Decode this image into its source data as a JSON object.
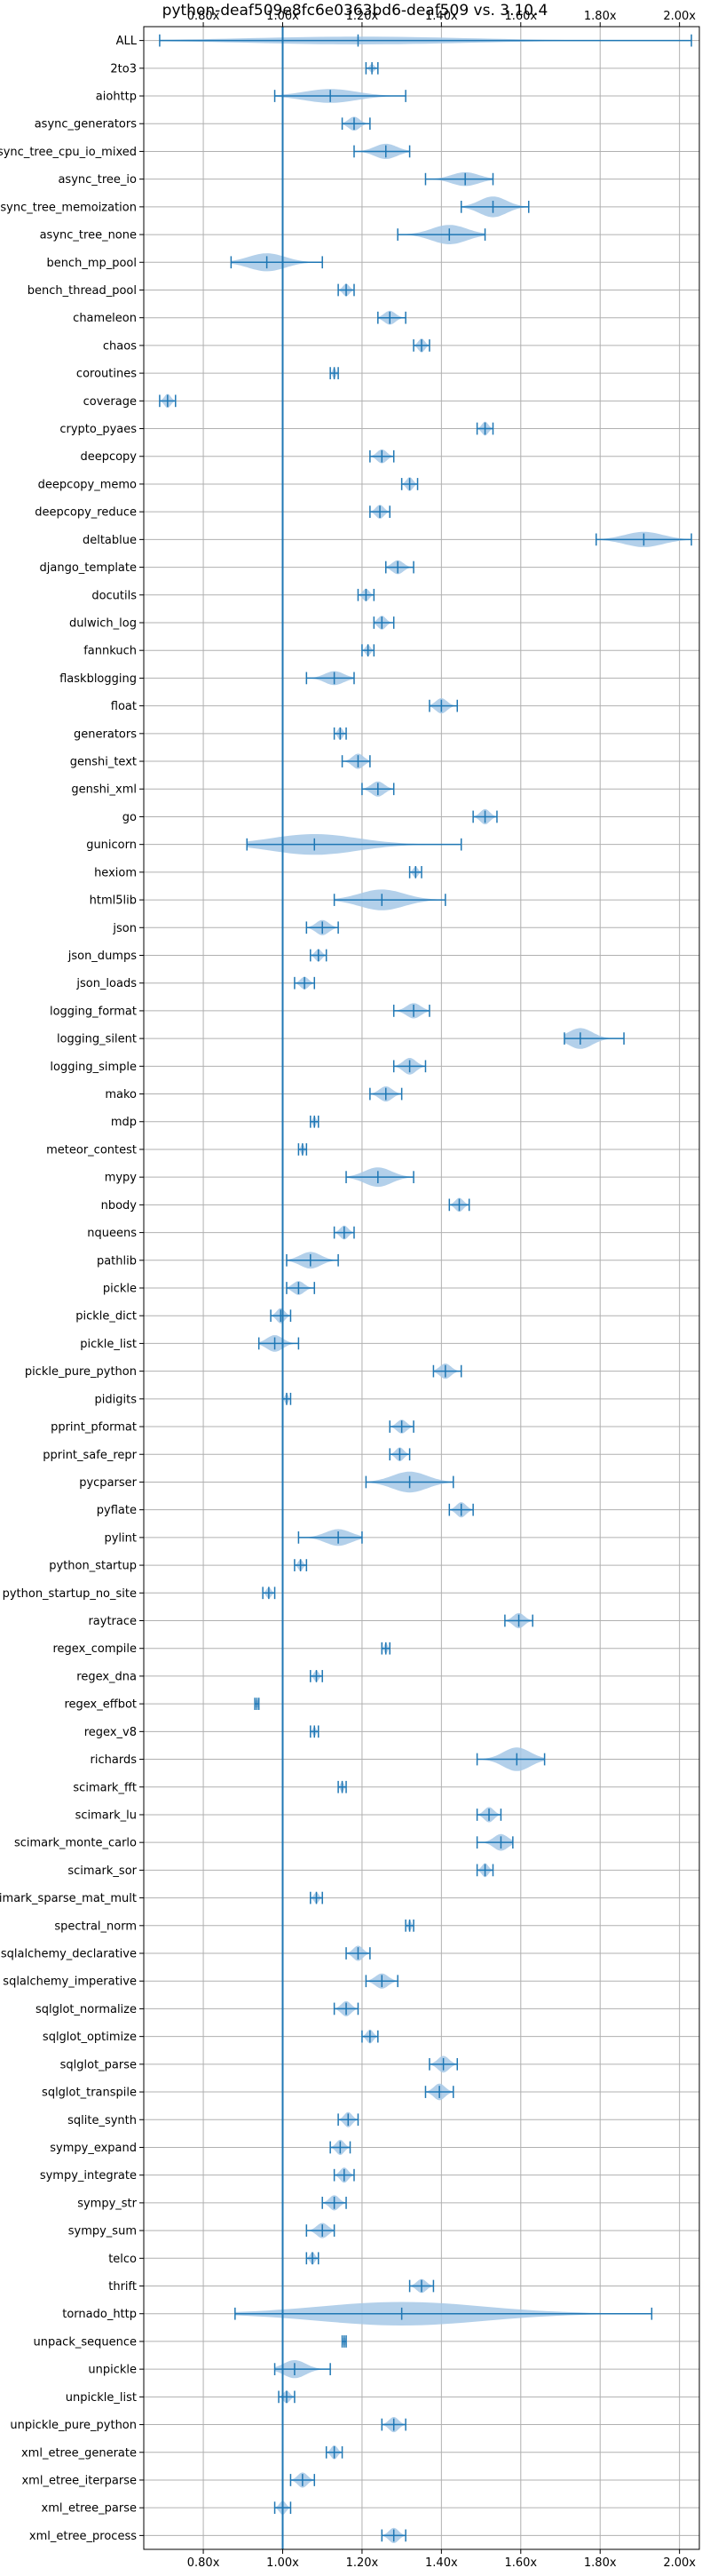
{
  "chart_data": {
    "type": "violin",
    "orientation": "horizontal",
    "title": "python-deaf509e8fc6e0363bd6-deaf509 vs. 3.10.4",
    "xlim": [
      0.65,
      2.05
    ],
    "xticks": [
      0.8,
      1.0,
      1.2,
      1.4,
      1.6,
      1.8,
      2.0
    ],
    "xtick_labels": [
      "0.80x",
      "1.00x",
      "1.20x",
      "1.40x",
      "1.60x",
      "1.80x",
      "2.00x"
    ],
    "xticks_top": true,
    "grid": true,
    "reference_line": 1.0,
    "colors": {
      "violin_fill": "#a6c8e6",
      "line": "#1f77b4",
      "grid": "#b0b0b0",
      "reference": "#1f77b4"
    },
    "categories": [
      "ALL",
      "2to3",
      "aiohttp",
      "async_generators",
      "async_tree_cpu_io_mixed",
      "async_tree_io",
      "async_tree_memoization",
      "async_tree_none",
      "bench_mp_pool",
      "bench_thread_pool",
      "chameleon",
      "chaos",
      "coroutines",
      "coverage",
      "crypto_pyaes",
      "deepcopy",
      "deepcopy_memo",
      "deepcopy_reduce",
      "deltablue",
      "django_template",
      "docutils",
      "dulwich_log",
      "fannkuch",
      "flaskblogging",
      "float",
      "generators",
      "genshi_text",
      "genshi_xml",
      "go",
      "gunicorn",
      "hexiom",
      "html5lib",
      "json",
      "json_dumps",
      "json_loads",
      "logging_format",
      "logging_silent",
      "logging_simple",
      "mako",
      "mdp",
      "meteor_contest",
      "mypy",
      "nbody",
      "nqueens",
      "pathlib",
      "pickle",
      "pickle_dict",
      "pickle_list",
      "pickle_pure_python",
      "pidigits",
      "pprint_pformat",
      "pprint_safe_repr",
      "pycparser",
      "pyflate",
      "pylint",
      "python_startup",
      "python_startup_no_site",
      "raytrace",
      "regex_compile",
      "regex_dna",
      "regex_effbot",
      "regex_v8",
      "richards",
      "scimark_fft",
      "scimark_lu",
      "scimark_monte_carlo",
      "scimark_sor",
      "scimark_sparse_mat_mult",
      "spectral_norm",
      "sqlalchemy_declarative",
      "sqlalchemy_imperative",
      "sqlglot_normalize",
      "sqlglot_optimize",
      "sqlglot_parse",
      "sqlglot_transpile",
      "sqlite_synth",
      "sympy_expand",
      "sympy_integrate",
      "sympy_str",
      "sympy_sum",
      "telco",
      "thrift",
      "tornado_http",
      "unpack_sequence",
      "unpickle",
      "unpickle_list",
      "unpickle_pure_python",
      "xml_etree_generate",
      "xml_etree_iterparse",
      "xml_etree_parse",
      "xml_etree_process"
    ],
    "series": [
      {
        "min": 0.69,
        "max": 2.03,
        "median": 1.19,
        "width": 0.28
      },
      {
        "min": 1.21,
        "max": 1.24,
        "median": 1.225,
        "width": 0.3
      },
      {
        "min": 0.98,
        "max": 1.31,
        "median": 1.12,
        "width": 0.5
      },
      {
        "min": 1.15,
        "max": 1.22,
        "median": 1.18,
        "width": 0.5
      },
      {
        "min": 1.18,
        "max": 1.32,
        "median": 1.26,
        "width": 0.55
      },
      {
        "min": 1.36,
        "max": 1.53,
        "median": 1.46,
        "width": 0.5
      },
      {
        "min": 1.45,
        "max": 1.62,
        "median": 1.53,
        "width": 0.75
      },
      {
        "min": 1.29,
        "max": 1.51,
        "median": 1.42,
        "width": 0.7
      },
      {
        "min": 0.87,
        "max": 1.1,
        "median": 0.96,
        "width": 0.65
      },
      {
        "min": 1.14,
        "max": 1.18,
        "median": 1.16,
        "width": 0.45
      },
      {
        "min": 1.24,
        "max": 1.31,
        "median": 1.27,
        "width": 0.5
      },
      {
        "min": 1.33,
        "max": 1.37,
        "median": 1.35,
        "width": 0.5
      },
      {
        "min": 1.12,
        "max": 1.14,
        "median": 1.13,
        "width": 0.4
      },
      {
        "min": 0.69,
        "max": 0.73,
        "median": 0.71,
        "width": 0.5
      },
      {
        "min": 1.49,
        "max": 1.53,
        "median": 1.51,
        "width": 0.5
      },
      {
        "min": 1.22,
        "max": 1.28,
        "median": 1.25,
        "width": 0.5
      },
      {
        "min": 1.3,
        "max": 1.34,
        "median": 1.32,
        "width": 0.5
      },
      {
        "min": 1.22,
        "max": 1.27,
        "median": 1.245,
        "width": 0.5
      },
      {
        "min": 1.79,
        "max": 2.03,
        "median": 1.91,
        "width": 0.55
      },
      {
        "min": 1.26,
        "max": 1.33,
        "median": 1.29,
        "width": 0.5
      },
      {
        "min": 1.19,
        "max": 1.23,
        "median": 1.21,
        "width": 0.45
      },
      {
        "min": 1.23,
        "max": 1.28,
        "median": 1.25,
        "width": 0.5
      },
      {
        "min": 1.2,
        "max": 1.23,
        "median": 1.215,
        "width": 0.4
      },
      {
        "min": 1.06,
        "max": 1.18,
        "median": 1.13,
        "width": 0.5
      },
      {
        "min": 1.37,
        "max": 1.44,
        "median": 1.4,
        "width": 0.55
      },
      {
        "min": 1.13,
        "max": 1.16,
        "median": 1.145,
        "width": 0.45
      },
      {
        "min": 1.15,
        "max": 1.22,
        "median": 1.19,
        "width": 0.55
      },
      {
        "min": 1.2,
        "max": 1.28,
        "median": 1.24,
        "width": 0.55
      },
      {
        "min": 1.48,
        "max": 1.54,
        "median": 1.51,
        "width": 0.55
      },
      {
        "min": 0.91,
        "max": 1.45,
        "median": 1.08,
        "width": 0.75
      },
      {
        "min": 1.32,
        "max": 1.35,
        "median": 1.335,
        "width": 0.4
      },
      {
        "min": 1.13,
        "max": 1.41,
        "median": 1.25,
        "width": 0.75
      },
      {
        "min": 1.06,
        "max": 1.14,
        "median": 1.1,
        "width": 0.55
      },
      {
        "min": 1.07,
        "max": 1.11,
        "median": 1.09,
        "width": 0.45
      },
      {
        "min": 1.03,
        "max": 1.08,
        "median": 1.055,
        "width": 0.45
      },
      {
        "min": 1.28,
        "max": 1.37,
        "median": 1.33,
        "width": 0.55
      },
      {
        "min": 1.71,
        "max": 1.86,
        "median": 1.75,
        "width": 0.75
      },
      {
        "min": 1.28,
        "max": 1.36,
        "median": 1.32,
        "width": 0.6
      },
      {
        "min": 1.22,
        "max": 1.3,
        "median": 1.26,
        "width": 0.55
      },
      {
        "min": 1.07,
        "max": 1.09,
        "median": 1.08,
        "width": 0.4
      },
      {
        "min": 1.04,
        "max": 1.06,
        "median": 1.05,
        "width": 0.4
      },
      {
        "min": 1.16,
        "max": 1.33,
        "median": 1.24,
        "width": 0.7
      },
      {
        "min": 1.42,
        "max": 1.47,
        "median": 1.445,
        "width": 0.5
      },
      {
        "min": 1.13,
        "max": 1.18,
        "median": 1.155,
        "width": 0.5
      },
      {
        "min": 1.01,
        "max": 1.14,
        "median": 1.07,
        "width": 0.6
      },
      {
        "min": 1.01,
        "max": 1.08,
        "median": 1.04,
        "width": 0.5
      },
      {
        "min": 0.97,
        "max": 1.02,
        "median": 0.995,
        "width": 0.55
      },
      {
        "min": 0.94,
        "max": 1.04,
        "median": 0.98,
        "width": 0.6
      },
      {
        "min": 1.38,
        "max": 1.45,
        "median": 1.41,
        "width": 0.55
      },
      {
        "min": 1.0,
        "max": 1.02,
        "median": 1.01,
        "width": 0.4
      },
      {
        "min": 1.27,
        "max": 1.33,
        "median": 1.3,
        "width": 0.5
      },
      {
        "min": 1.27,
        "max": 1.32,
        "median": 1.295,
        "width": 0.5
      },
      {
        "min": 1.21,
        "max": 1.43,
        "median": 1.32,
        "width": 0.75
      },
      {
        "min": 1.42,
        "max": 1.48,
        "median": 1.45,
        "width": 0.55
      },
      {
        "min": 1.04,
        "max": 1.2,
        "median": 1.14,
        "width": 0.6
      },
      {
        "min": 1.03,
        "max": 1.06,
        "median": 1.045,
        "width": 0.4
      },
      {
        "min": 0.95,
        "max": 0.98,
        "median": 0.965,
        "width": 0.4
      },
      {
        "min": 1.56,
        "max": 1.63,
        "median": 1.595,
        "width": 0.55
      },
      {
        "min": 1.25,
        "max": 1.27,
        "median": 1.26,
        "width": 0.4
      },
      {
        "min": 1.07,
        "max": 1.1,
        "median": 1.085,
        "width": 0.4
      },
      {
        "min": 0.93,
        "max": 0.94,
        "median": 0.935,
        "width": 0.3
      },
      {
        "min": 1.07,
        "max": 1.09,
        "median": 1.08,
        "width": 0.35
      },
      {
        "min": 1.49,
        "max": 1.66,
        "median": 1.59,
        "width": 0.85
      },
      {
        "min": 1.14,
        "max": 1.16,
        "median": 1.15,
        "width": 0.4
      },
      {
        "min": 1.49,
        "max": 1.55,
        "median": 1.52,
        "width": 0.55
      },
      {
        "min": 1.49,
        "max": 1.58,
        "median": 1.55,
        "width": 0.6
      },
      {
        "min": 1.49,
        "max": 1.53,
        "median": 1.51,
        "width": 0.5
      },
      {
        "min": 1.07,
        "max": 1.1,
        "median": 1.085,
        "width": 0.4
      },
      {
        "min": 1.31,
        "max": 1.33,
        "median": 1.32,
        "width": 0.4
      },
      {
        "min": 1.16,
        "max": 1.22,
        "median": 1.19,
        "width": 0.55
      },
      {
        "min": 1.21,
        "max": 1.29,
        "median": 1.25,
        "width": 0.55
      },
      {
        "min": 1.13,
        "max": 1.19,
        "median": 1.16,
        "width": 0.55
      },
      {
        "min": 1.2,
        "max": 1.24,
        "median": 1.22,
        "width": 0.5
      },
      {
        "min": 1.37,
        "max": 1.44,
        "median": 1.405,
        "width": 0.6
      },
      {
        "min": 1.36,
        "max": 1.43,
        "median": 1.395,
        "width": 0.6
      },
      {
        "min": 1.14,
        "max": 1.19,
        "median": 1.165,
        "width": 0.55
      },
      {
        "min": 1.12,
        "max": 1.17,
        "median": 1.145,
        "width": 0.55
      },
      {
        "min": 1.13,
        "max": 1.18,
        "median": 1.155,
        "width": 0.55
      },
      {
        "min": 1.1,
        "max": 1.16,
        "median": 1.13,
        "width": 0.55
      },
      {
        "min": 1.06,
        "max": 1.13,
        "median": 1.1,
        "width": 0.55
      },
      {
        "min": 1.06,
        "max": 1.09,
        "median": 1.075,
        "width": 0.45
      },
      {
        "min": 1.32,
        "max": 1.38,
        "median": 1.35,
        "width": 0.5
      },
      {
        "min": 0.88,
        "max": 1.93,
        "median": 1.3,
        "width": 0.85
      },
      {
        "min": 1.15,
        "max": 1.16,
        "median": 1.155,
        "width": 0.3
      },
      {
        "min": 0.98,
        "max": 1.12,
        "median": 1.03,
        "width": 0.65
      },
      {
        "min": 0.99,
        "max": 1.03,
        "median": 1.01,
        "width": 0.45
      },
      {
        "min": 1.25,
        "max": 1.31,
        "median": 1.28,
        "width": 0.55
      },
      {
        "min": 1.11,
        "max": 1.15,
        "median": 1.13,
        "width": 0.5
      },
      {
        "min": 1.02,
        "max": 1.08,
        "median": 1.05,
        "width": 0.55
      },
      {
        "min": 0.98,
        "max": 1.02,
        "median": 1.0,
        "width": 0.5
      },
      {
        "min": 1.25,
        "max": 1.31,
        "median": 1.28,
        "width": 0.55
      }
    ]
  }
}
